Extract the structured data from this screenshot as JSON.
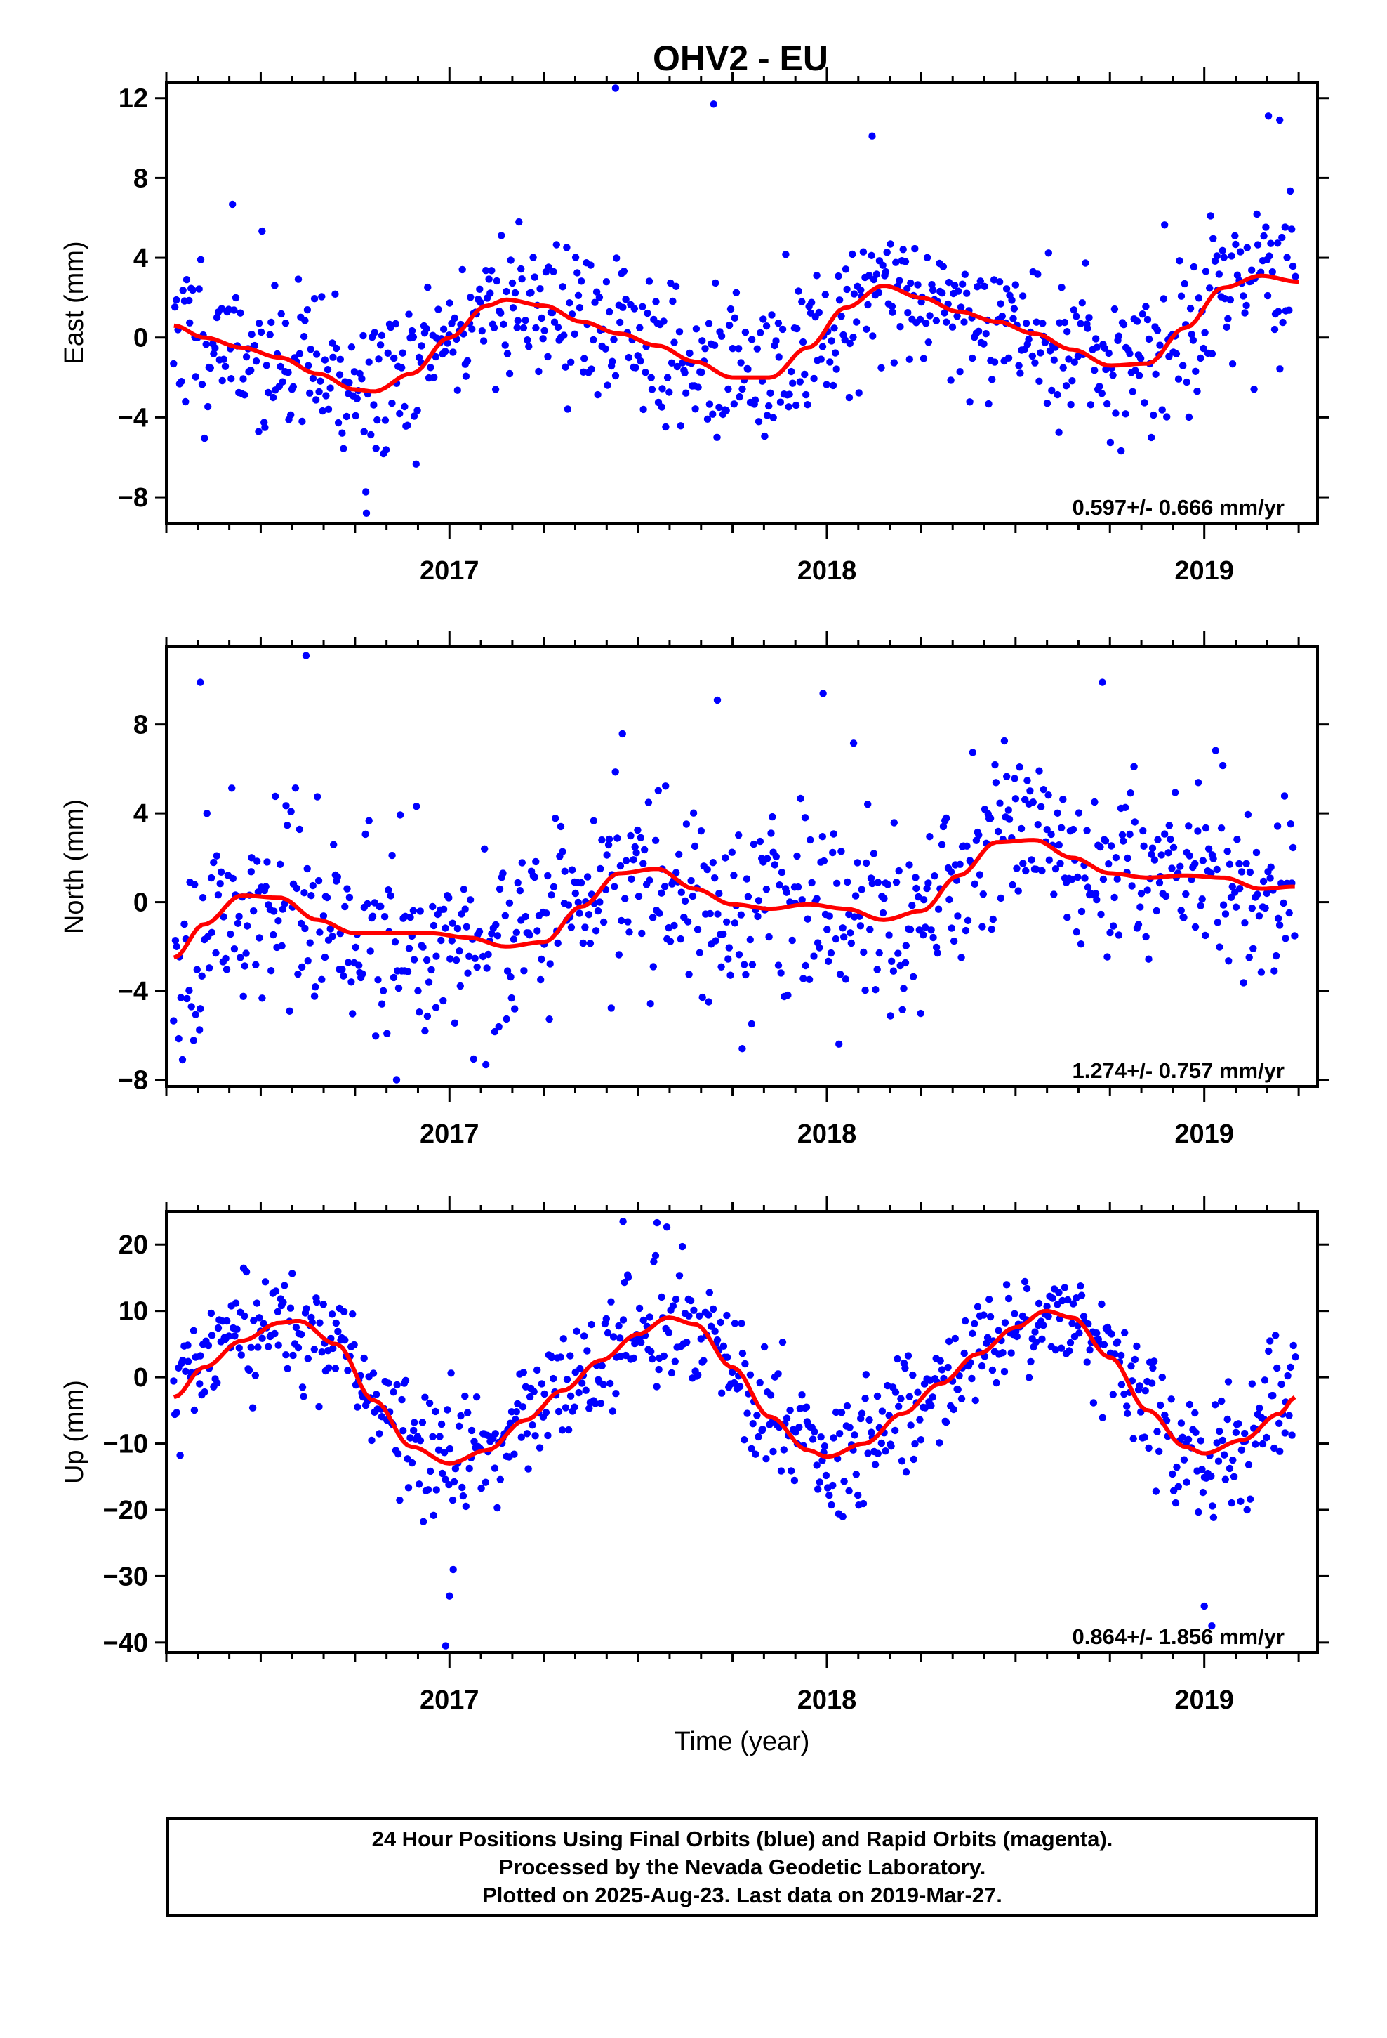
{
  "title": "OHV2 - EU",
  "xlabel": "Time (year)",
  "footer": {
    "line1": "24 Hour Positions Using Final Orbits (blue) and Rapid Orbits (magenta).",
    "line2": "Processed by the Nevada Geodetic Laboratory.",
    "line3": "Plotted on 2025-Aug-23. Last data on 2019-Mar-27."
  },
  "colors": {
    "points": "#0000ff",
    "fit": "#ff0000",
    "frame": "#000000"
  },
  "chart_data": [
    {
      "type": "scatter",
      "ylabel": "East (mm)",
      "rate_text": "0.597+/- 0.666 mm/yr",
      "xlim": [
        2016.25,
        2019.3
      ],
      "ylim": [
        -9.3,
        12.8
      ],
      "yticks": [
        -8,
        -4,
        0,
        4,
        8,
        12
      ],
      "xticks": [
        2017,
        2018,
        2019
      ],
      "grid": false,
      "fit_series": {
        "name": "",
        "x": [
          2016.27,
          2016.35,
          2016.45,
          2016.55,
          2016.65,
          2016.75,
          2016.8,
          2016.9,
          2017.0,
          2017.1,
          2017.15,
          2017.25,
          2017.35,
          2017.45,
          2017.55,
          2017.65,
          2017.75,
          2017.85,
          2017.95,
          2018.05,
          2018.15,
          2018.25,
          2018.35,
          2018.45,
          2018.55,
          2018.65,
          2018.75,
          2018.85,
          2018.95,
          2019.05,
          2019.15,
          2019.25
        ],
        "y": [
          0.6,
          0.0,
          -0.5,
          -1.0,
          -1.8,
          -2.6,
          -2.7,
          -1.8,
          0.0,
          1.6,
          1.9,
          1.6,
          0.8,
          0.2,
          -0.4,
          -1.2,
          -2.0,
          -2.0,
          -0.5,
          1.5,
          2.6,
          2.0,
          1.3,
          0.8,
          0.2,
          -0.6,
          -1.4,
          -1.3,
          0.5,
          2.5,
          3.1,
          2.8
        ]
      },
      "point_model": {
        "x_start": 2016.27,
        "x_end": 2019.24,
        "count": 760,
        "noise": 2.0,
        "seed": 11
      },
      "outliers": [
        {
          "x": 2017.44,
          "y": 12.5
        },
        {
          "x": 2017.7,
          "y": 11.7
        },
        {
          "x": 2018.12,
          "y": 10.1
        },
        {
          "x": 2016.78,
          "y": -8.8
        },
        {
          "x": 2019.17,
          "y": 11.1
        },
        {
          "x": 2019.2,
          "y": 10.9
        }
      ]
    },
    {
      "type": "scatter",
      "ylabel": "North (mm)",
      "rate_text": "1.274+/- 0.757 mm/yr",
      "xlim": [
        2016.25,
        2019.3
      ],
      "ylim": [
        -8.3,
        11.5
      ],
      "yticks": [
        -8,
        -4,
        0,
        4,
        8
      ],
      "xticks": [
        2017,
        2018,
        2019
      ],
      "grid": false,
      "fit_series": {
        "name": "",
        "x": [
          2016.27,
          2016.35,
          2016.45,
          2016.55,
          2016.65,
          2016.75,
          2016.85,
          2016.95,
          2017.05,
          2017.15,
          2017.25,
          2017.35,
          2017.45,
          2017.55,
          2017.65,
          2017.75,
          2017.85,
          2017.95,
          2018.05,
          2018.15,
          2018.25,
          2018.35,
          2018.45,
          2018.55,
          2018.65,
          2018.75,
          2018.85,
          2018.95,
          2019.05,
          2019.15,
          2019.24
        ],
        "y": [
          -2.5,
          -1.0,
          0.3,
          0.2,
          -0.8,
          -1.4,
          -1.4,
          -1.4,
          -1.6,
          -2.0,
          -1.8,
          -0.2,
          1.3,
          1.5,
          0.6,
          -0.1,
          -0.3,
          -0.1,
          -0.3,
          -0.8,
          -0.4,
          1.2,
          2.7,
          2.8,
          2.0,
          1.3,
          1.1,
          1.2,
          1.1,
          0.6,
          0.7
        ]
      },
      "point_model": {
        "x_start": 2016.27,
        "x_end": 2019.24,
        "count": 760,
        "noise": 2.2,
        "seed": 23
      },
      "outliers": [
        {
          "x": 2016.34,
          "y": 9.9
        },
        {
          "x": 2016.62,
          "y": 11.1
        },
        {
          "x": 2017.71,
          "y": 9.1
        },
        {
          "x": 2017.99,
          "y": 9.4
        },
        {
          "x": 2018.73,
          "y": 9.9
        },
        {
          "x": 2016.86,
          "y": -8.0
        }
      ]
    },
    {
      "type": "scatter",
      "ylabel": "Up (mm)",
      "rate_text": "0.864+/- 1.856 mm/yr",
      "xlim": [
        2016.25,
        2019.3
      ],
      "ylim": [
        -41.5,
        25
      ],
      "yticks": [
        -40,
        -30,
        -20,
        -10,
        0,
        10,
        20
      ],
      "xticks": [
        2017,
        2018,
        2019
      ],
      "grid": false,
      "fit_series": {
        "name": "",
        "x": [
          2016.27,
          2016.35,
          2016.45,
          2016.55,
          2016.6,
          2016.7,
          2016.8,
          2016.9,
          2017.0,
          2017.1,
          2017.2,
          2017.3,
          2017.4,
          2017.5,
          2017.58,
          2017.65,
          2017.75,
          2017.85,
          2017.95,
          2018.0,
          2018.1,
          2018.2,
          2018.3,
          2018.4,
          2018.5,
          2018.58,
          2018.65,
          2018.75,
          2018.85,
          2018.95,
          2019.0,
          2019.1,
          2019.2,
          2019.24
        ],
        "y": [
          -3.0,
          1.5,
          5.5,
          8.2,
          8.5,
          5.0,
          -3.5,
          -10.5,
          -13.0,
          -11.0,
          -6.5,
          -2.0,
          2.5,
          6.5,
          9.0,
          8.0,
          1.5,
          -6.0,
          -11.0,
          -12.0,
          -10.0,
          -5.5,
          -1.0,
          3.5,
          7.5,
          10.0,
          9.0,
          3.0,
          -5.0,
          -10.5,
          -11.5,
          -9.5,
          -5.5,
          -3.0
        ]
      },
      "point_model": {
        "x_start": 2016.27,
        "x_end": 2019.24,
        "count": 760,
        "noise": 4.5,
        "seed": 37
      },
      "outliers": [
        {
          "x": 2016.99,
          "y": -40.5
        },
        {
          "x": 2017.0,
          "y": -33.0
        },
        {
          "x": 2017.01,
          "y": -29.0
        },
        {
          "x": 2019.02,
          "y": -37.5
        },
        {
          "x": 2019.0,
          "y": -34.5
        },
        {
          "x": 2017.46,
          "y": 23.5
        },
        {
          "x": 2017.55,
          "y": 23.3
        }
      ]
    }
  ]
}
